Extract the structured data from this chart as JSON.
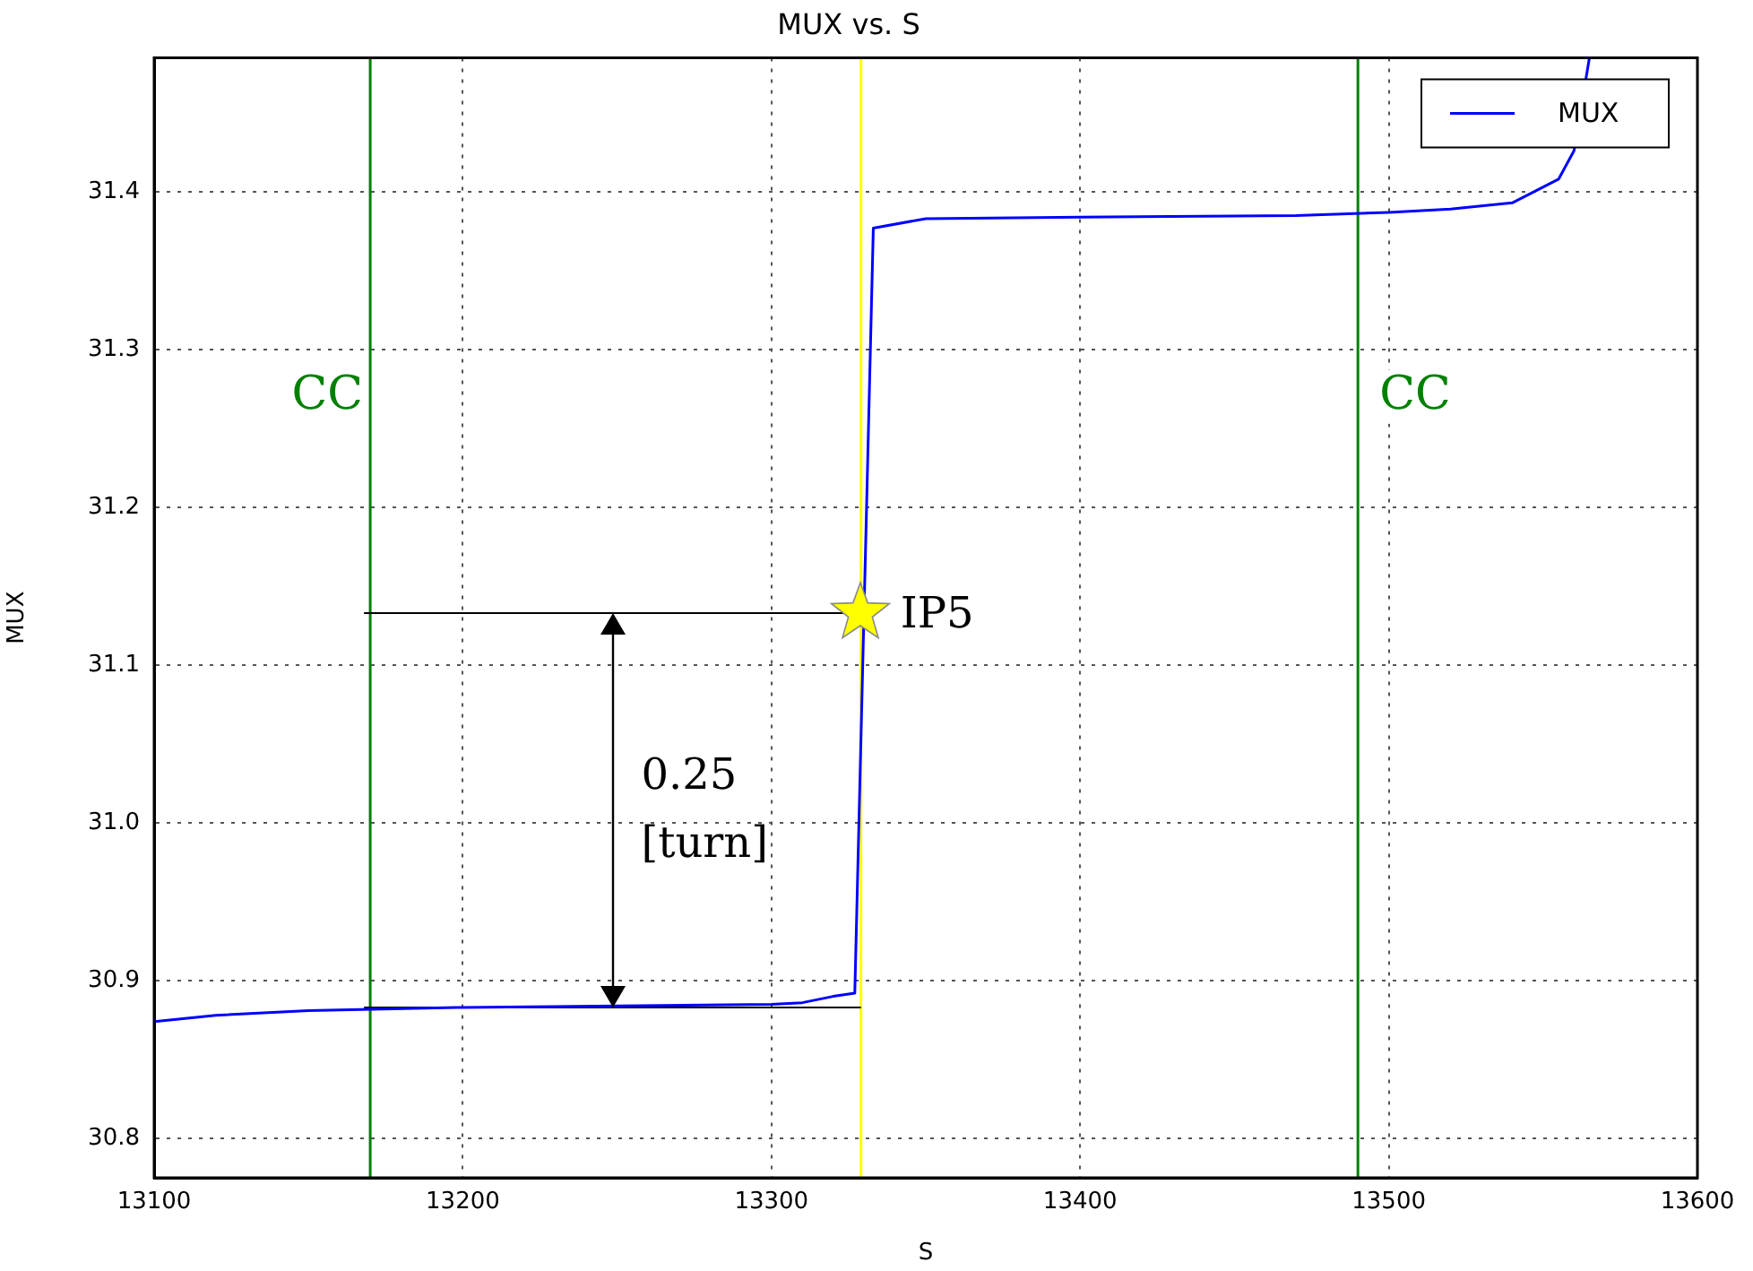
{
  "chart_data": {
    "type": "line",
    "title": "MUX vs. S",
    "xlabel": "S",
    "ylabel": "MUX",
    "xlim": [
      13100,
      13600
    ],
    "xticks": [
      13100,
      13200,
      13300,
      13400,
      13500,
      13600
    ],
    "ylim": [
      30.775,
      31.485
    ],
    "yticks": [
      30.8,
      30.9,
      {
        "value": 31,
        "label": "31.0"
      },
      31.1,
      31.2,
      31.3,
      31.4
    ],
    "grid": true,
    "legend": "top right",
    "line_style": "solid",
    "series": [
      {
        "name": "MUX",
        "color": "#0000ff",
        "x": [
          13100,
          13120,
          13150,
          13200,
          13300,
          13310,
          13320,
          13327,
          13333,
          13350,
          13400,
          13470,
          13500,
          13520,
          13540,
          13555,
          13560,
          13565
        ],
        "values": [
          30.874,
          30.878,
          30.881,
          30.883,
          30.885,
          30.886,
          30.89,
          30.892,
          31.377,
          31.383,
          31.384,
          31.385,
          31.387,
          31.389,
          31.393,
          31.408,
          31.426,
          31.485
        ]
      },
      {
        "color": "#000000",
        "x": [
          13168,
          13329
        ],
        "values": [
          31.133,
          31.133
        ]
      },
      {
        "color": "#000000",
        "x": [
          13168,
          13329
        ],
        "values": [
          30.883,
          30.883
        ]
      }
    ],
    "ref_lines": [
      {
        "axis": "x",
        "value": 13170,
        "label": "CC",
        "color": "#008000"
      },
      {
        "axis": "x",
        "value": 13490,
        "label": "CC",
        "color": "#008000"
      },
      {
        "axis": "x",
        "value": 13329,
        "color": "#ffff00"
      }
    ],
    "annotations": [
      {
        "text": "IP5",
        "x": 13329,
        "y": 31.133
      },
      "0.25 [turn]"
    ]
  }
}
